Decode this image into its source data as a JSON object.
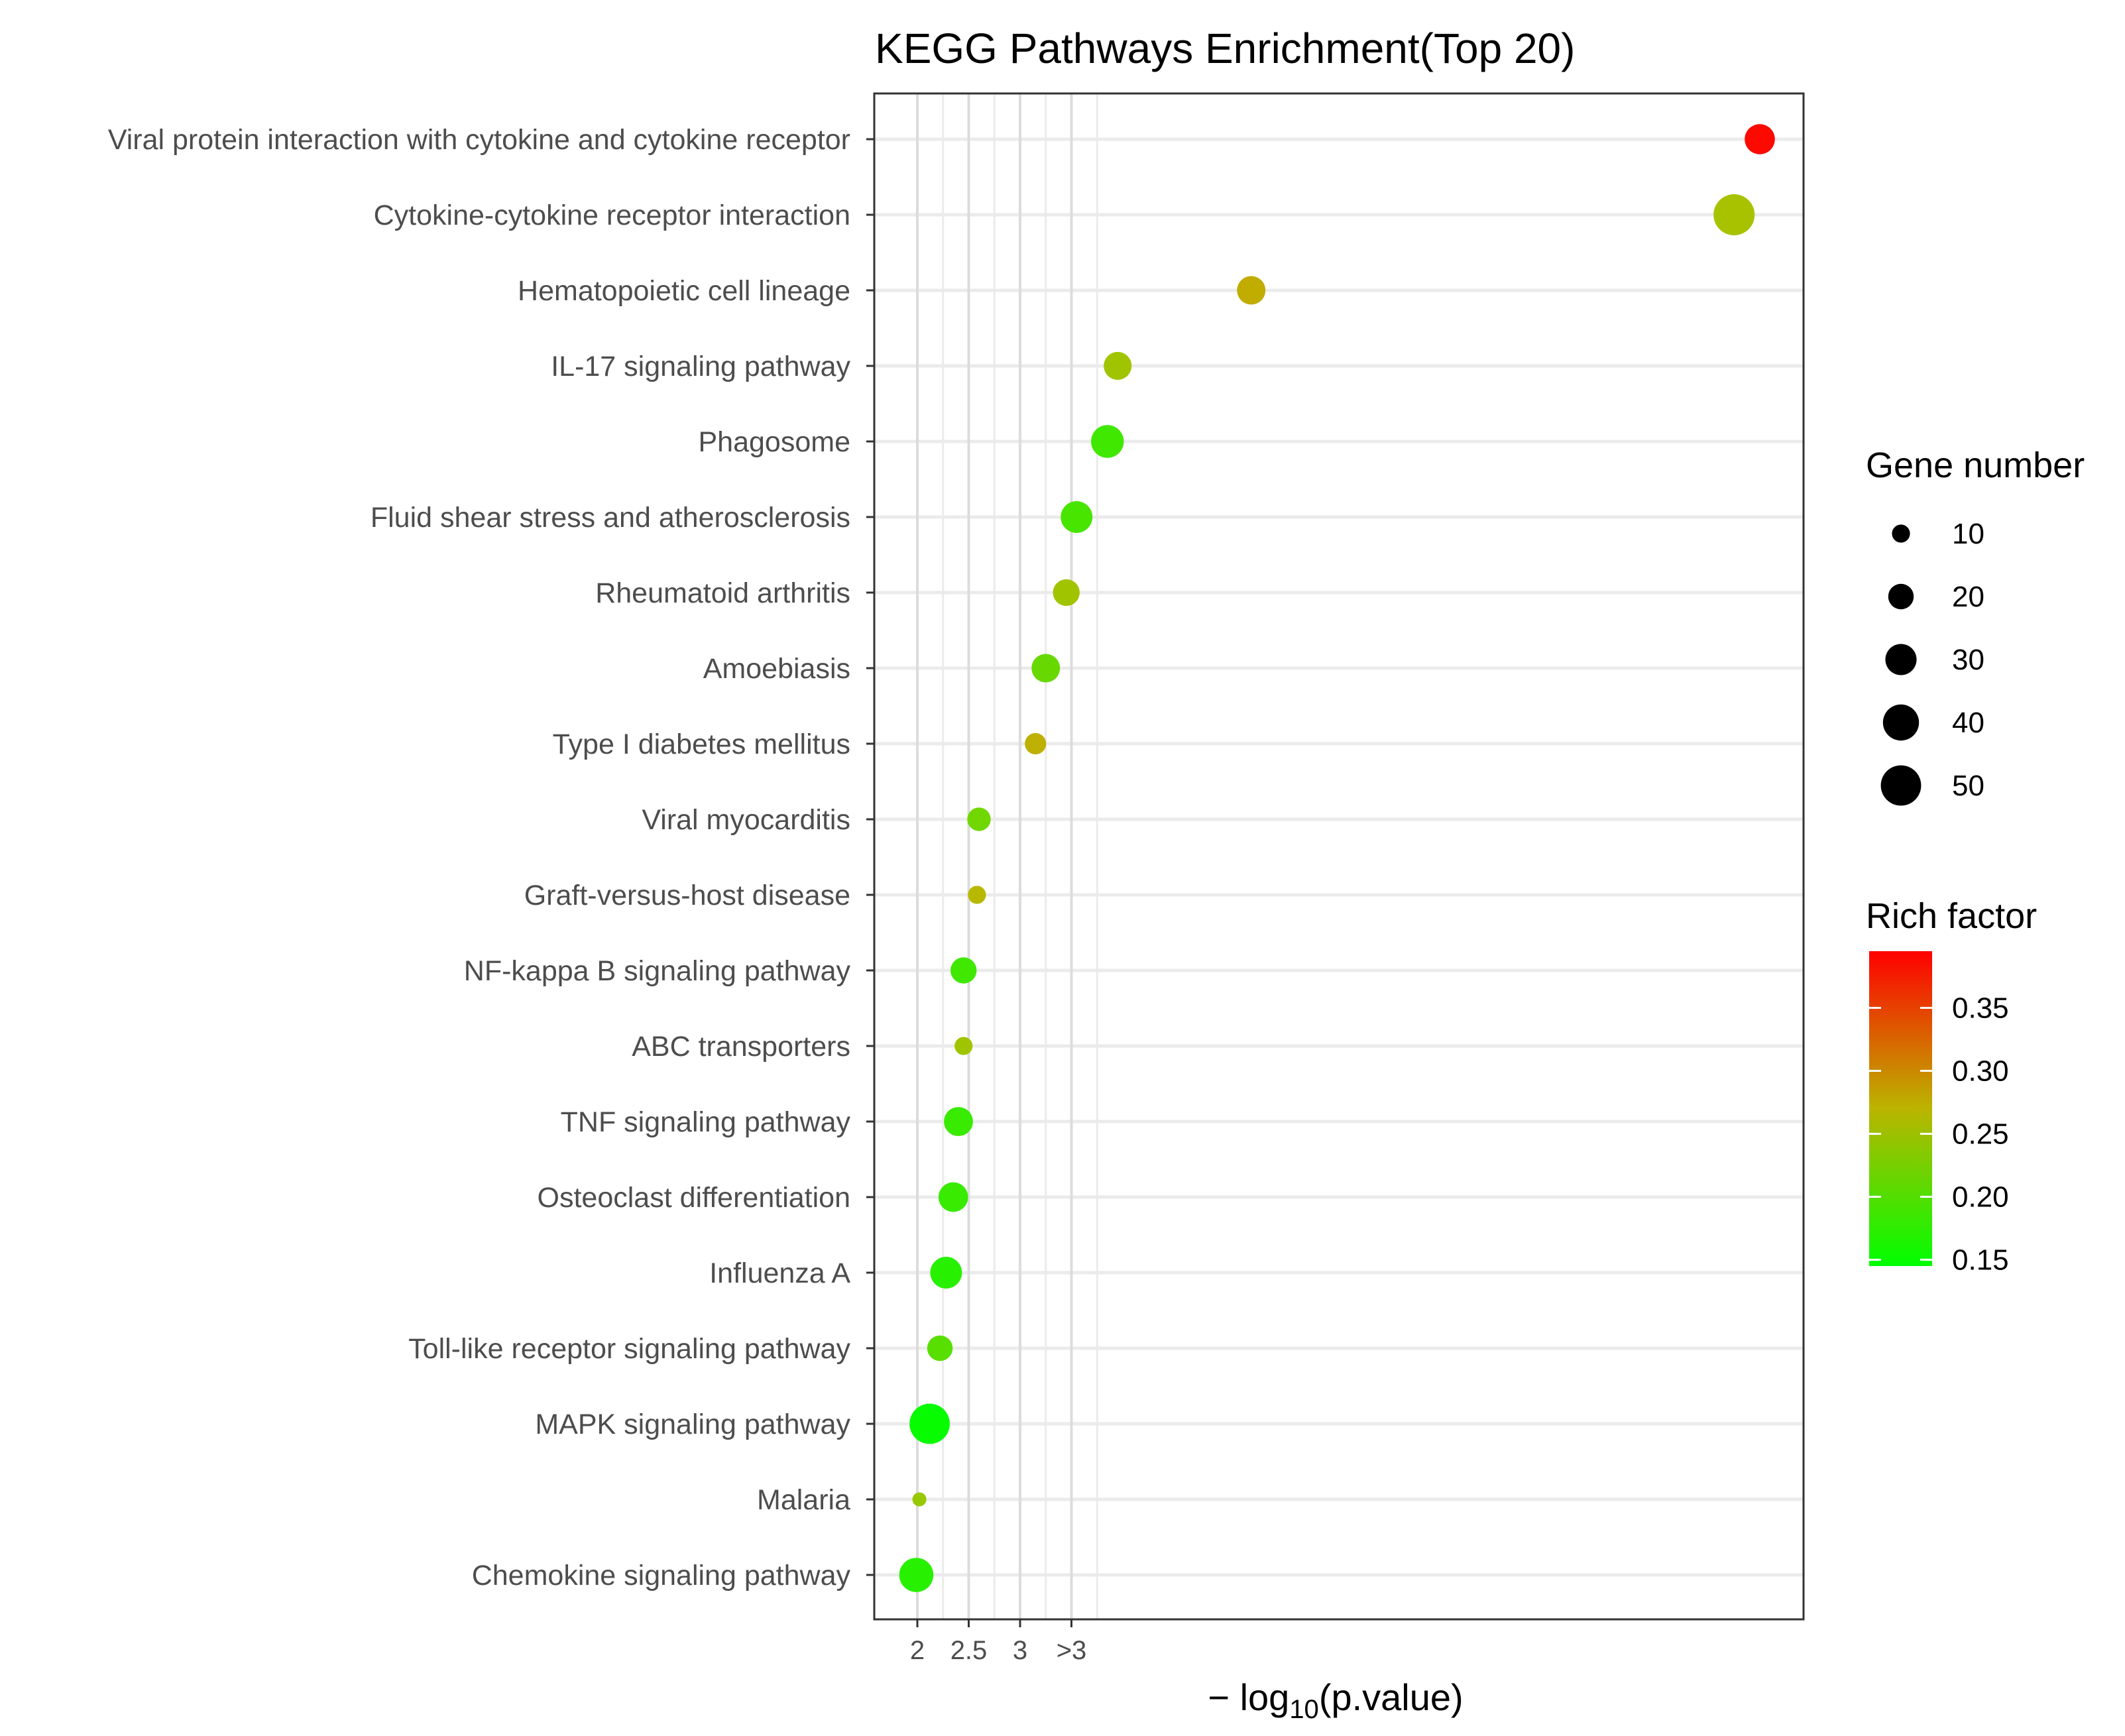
{
  "chart_data": {
    "type": "scatter",
    "title": "KEGG Pathways Enrichment(Top 20)",
    "xlabel_parts": {
      "prefix": "− log",
      "subscript": "10",
      "suffix": "(p.value)"
    },
    "ylabel": "",
    "x_ticks": [
      {
        "value": 2.0,
        "label": "2"
      },
      {
        "value": 2.5,
        "label": "2.5"
      },
      {
        "value": 3.0,
        "label": "3"
      },
      {
        "value": 3.5,
        "label": ">3"
      }
    ],
    "x_minor_gridlines": [
      2.25,
      2.75,
      3.25,
      3.75
    ],
    "xlim": [
      1.55,
      10.6
    ],
    "grid": true,
    "points": [
      {
        "pathway": "Viral protein interaction with cytokine and cytokine receptor",
        "neg_log10_p": 10.2,
        "gene_number": 28,
        "rich_factor": 0.39
      },
      {
        "pathway": "Cytokine-cytokine receptor interaction",
        "neg_log10_p": 9.95,
        "gene_number": 52,
        "rich_factor": 0.25
      },
      {
        "pathway": "Hematopoietic cell lineage",
        "neg_log10_p": 5.25,
        "gene_number": 25,
        "rich_factor": 0.28
      },
      {
        "pathway": "IL-17 signaling pathway",
        "neg_log10_p": 3.95,
        "gene_number": 24,
        "rich_factor": 0.245
      },
      {
        "pathway": "Phagosome",
        "neg_log10_p": 3.85,
        "gene_number": 33,
        "rich_factor": 0.185
      },
      {
        "pathway": "Fluid shear stress and atherosclerosis",
        "neg_log10_p": 3.55,
        "gene_number": 31,
        "rich_factor": 0.19
      },
      {
        "pathway": "Rheumatoid arthritis",
        "neg_log10_p": 3.45,
        "gene_number": 22,
        "rich_factor": 0.245
      },
      {
        "pathway": "Amoebiasis",
        "neg_log10_p": 3.25,
        "gene_number": 25,
        "rich_factor": 0.21
      },
      {
        "pathway": "Type I diabetes mellitus",
        "neg_log10_p": 3.15,
        "gene_number": 14,
        "rich_factor": 0.275
      },
      {
        "pathway": "Viral myocarditis",
        "neg_log10_p": 2.6,
        "gene_number": 17,
        "rich_factor": 0.215
      },
      {
        "pathway": "Graft-versus-host disease",
        "neg_log10_p": 2.58,
        "gene_number": 10,
        "rich_factor": 0.265
      },
      {
        "pathway": "NF-kappa B signaling pathway",
        "neg_log10_p": 2.45,
        "gene_number": 21,
        "rich_factor": 0.185
      },
      {
        "pathway": "ABC transporters",
        "neg_log10_p": 2.45,
        "gene_number": 10,
        "rich_factor": 0.245
      },
      {
        "pathway": "TNF signaling pathway",
        "neg_log10_p": 2.4,
        "gene_number": 26,
        "rich_factor": 0.18
      },
      {
        "pathway": "Osteoclast differentiation",
        "neg_log10_p": 2.35,
        "gene_number": 27,
        "rich_factor": 0.18
      },
      {
        "pathway": "Influenza A",
        "neg_log10_p": 2.28,
        "gene_number": 31,
        "rich_factor": 0.17
      },
      {
        "pathway": "Toll-like receptor signaling pathway",
        "neg_log10_p": 2.22,
        "gene_number": 20,
        "rich_factor": 0.2
      },
      {
        "pathway": "MAPK signaling pathway",
        "neg_log10_p": 2.12,
        "gene_number": 50,
        "rich_factor": 0.15
      },
      {
        "pathway": "Malaria",
        "neg_log10_p": 2.02,
        "gene_number": 6,
        "rich_factor": 0.24
      },
      {
        "pathway": "Chemokine signaling pathway",
        "neg_log10_p": 1.99,
        "gene_number": 36,
        "rich_factor": 0.17
      }
    ],
    "size_legend": {
      "title": "Gene number",
      "entries": [
        {
          "label": "10",
          "value": 10
        },
        {
          "label": "20",
          "value": 20
        },
        {
          "label": "30",
          "value": 30
        },
        {
          "label": "40",
          "value": 40
        },
        {
          "label": "50",
          "value": 50
        }
      ]
    },
    "color_legend": {
      "title": "Rich factor",
      "range": [
        0.145,
        0.395
      ],
      "ticks": [
        {
          "label": "0.35",
          "value": 0.35
        },
        {
          "label": "0.30",
          "value": 0.3
        },
        {
          "label": "0.25",
          "value": 0.25
        },
        {
          "label": "0.20",
          "value": 0.2
        },
        {
          "label": "0.15",
          "value": 0.15
        }
      ],
      "low_color": "#00ff00",
      "high_color": "#ff0000"
    }
  }
}
